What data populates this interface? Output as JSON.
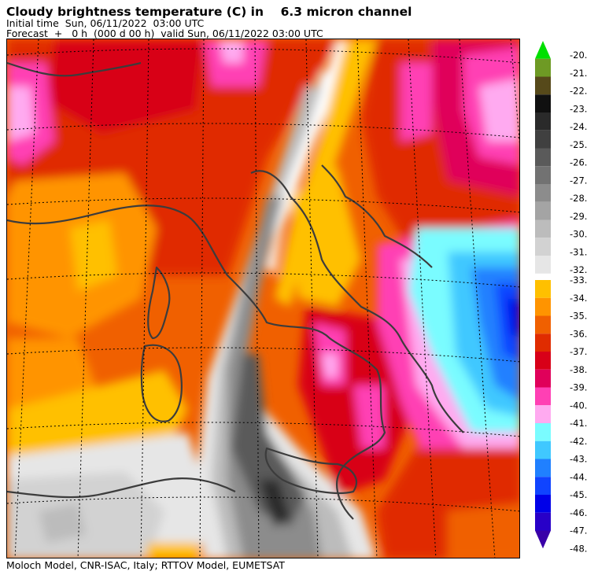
{
  "header": {
    "title": "Cloudy brightness temperature (C) in    6.3 micron channel",
    "initial_time": "Initial time  Sun, 06/11/2022  03:00 UTC",
    "forecast": "Forecast  +   0 h  (000 d 00 h)  valid Sun, 06/11/2022 03:00 UTC"
  },
  "footer": {
    "credit": "Moloch Model, CNR-ISAC, Italy; RTTOV Model, EUMETSAT"
  },
  "legend": {
    "upper_levels": [
      {
        "label": "-20.",
        "color": "#00e000"
      },
      {
        "label": "-21.",
        "color": "#6e9a24"
      },
      {
        "label": "-22.",
        "color": "#56491a"
      },
      {
        "label": "-23.",
        "color": "#101010"
      },
      {
        "label": "-24.",
        "color": "#2a2a2a"
      },
      {
        "label": "-25.",
        "color": "#404040"
      },
      {
        "label": "-26.",
        "color": "#5a5a5a"
      },
      {
        "label": "-27.",
        "color": "#727272"
      },
      {
        "label": "-28.",
        "color": "#8c8c8c"
      },
      {
        "label": "-29.",
        "color": "#a4a4a4"
      },
      {
        "label": "-30.",
        "color": "#bcbcbc"
      },
      {
        "label": "-31.",
        "color": "#d2d2d2"
      },
      {
        "label": "-32.",
        "color": "#e6e6e6"
      }
    ],
    "lower_levels": [
      {
        "label": "-33.",
        "color": "#ffc000"
      },
      {
        "label": "-34.",
        "color": "#ff9400"
      },
      {
        "label": "-35.",
        "color": "#f06000"
      },
      {
        "label": "-36.",
        "color": "#e02c00"
      },
      {
        "label": "-37.",
        "color": "#d80018"
      },
      {
        "label": "-38.",
        "color": "#e0005a"
      },
      {
        "label": "-39.",
        "color": "#ff40b4"
      },
      {
        "label": "-40.",
        "color": "#ffaaf0"
      },
      {
        "label": "-41.",
        "color": "#7afcff"
      },
      {
        "label": "-42.",
        "color": "#40c8ff"
      },
      {
        "label": "-43.",
        "color": "#2080ff"
      },
      {
        "label": "-44.",
        "color": "#1044ff"
      },
      {
        "label": "-45.",
        "color": "#0000e8"
      },
      {
        "label": "-46.",
        "color": "#2800c8"
      },
      {
        "label": "-47.",
        "color": "#3a00a8"
      }
    ],
    "end_label": "-48."
  },
  "colors": {
    "coast": "#3c3c3c",
    "grid": "#000000"
  }
}
